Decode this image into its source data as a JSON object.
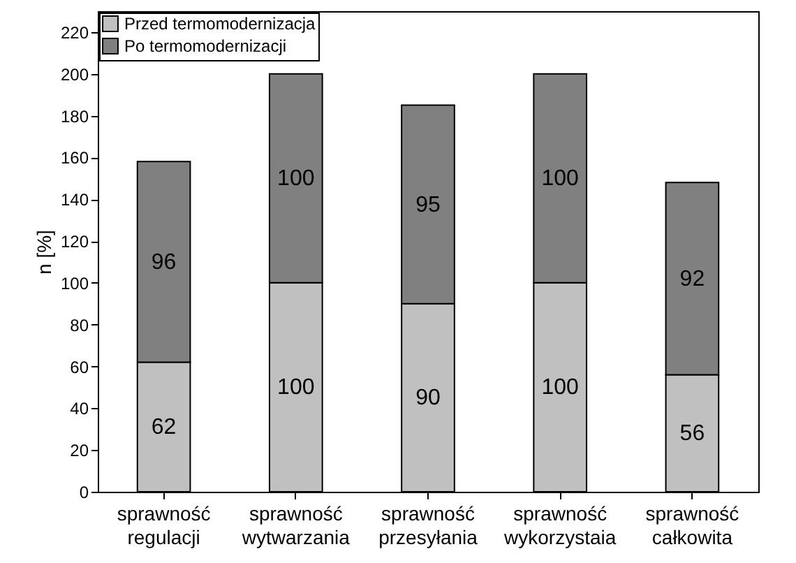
{
  "chart_data": {
    "type": "bar",
    "ylabel": "n [%]",
    "categories": [
      "sprawność regulacji",
      "sprawność wytwarzania",
      "sprawność przesyłania",
      "sprawność wykorzystaia",
      "sprawność całkowita"
    ],
    "series": [
      {
        "name": "Przed termomodernizacja",
        "color": "#c0c0c0",
        "values": [
          62,
          100,
          90,
          100,
          56
        ]
      },
      {
        "name": "Po termomodernizacji",
        "color": "#808080",
        "values": [
          96,
          100,
          95,
          100,
          92
        ]
      }
    ],
    "stacked": true,
    "data_labels": true,
    "legend": "top left",
    "grid": false,
    "ylim": [
      0,
      230
    ],
    "yticks": [
      0,
      20,
      40,
      60,
      80,
      100,
      120,
      140,
      160,
      180,
      200,
      220
    ]
  }
}
